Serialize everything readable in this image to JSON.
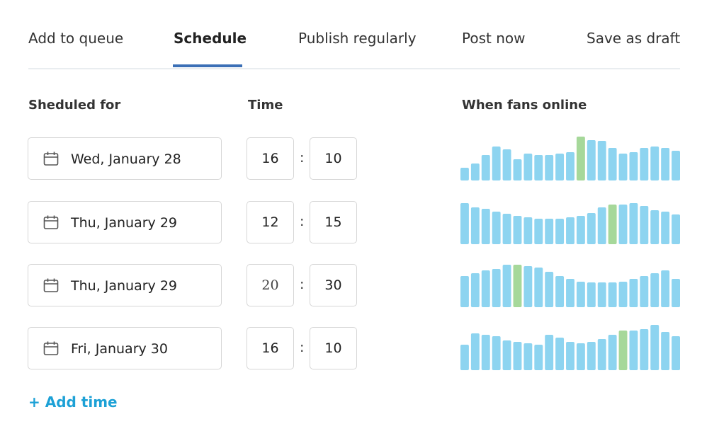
{
  "tabs": [
    {
      "label": "Add to queue",
      "active": false
    },
    {
      "label": "Schedule",
      "active": true
    },
    {
      "label": "Publish regularly",
      "active": false
    },
    {
      "label": "Post now",
      "active": false
    },
    {
      "label": "Save as draft",
      "active": false
    }
  ],
  "columns": {
    "scheduled_for": "Sheduled for",
    "time": "Time",
    "fans_online": "When fans online"
  },
  "colors": {
    "accent": "#3b6fb6",
    "bar": "#8dd4f0",
    "bar_highlight": "#a6d89a",
    "link": "#1da1d6"
  },
  "rows": [
    {
      "date": "Wed, January 28",
      "hour": "16",
      "minute": "10",
      "sep": ":"
    },
    {
      "date": "Thu, January 29",
      "hour": "12",
      "minute": "15",
      "sep": ":"
    },
    {
      "date": "Thu, January 29",
      "hour": "20",
      "minute": "30",
      "sep": ":"
    },
    {
      "date": "Fri, January 30",
      "hour": "16",
      "minute": "10",
      "sep": ":"
    }
  ],
  "chart_data": [
    {
      "type": "bar",
      "values": [
        18,
        24,
        36,
        48,
        44,
        30,
        38,
        36,
        36,
        38,
        40,
        62,
        57,
        56,
        46,
        38,
        40,
        46,
        48,
        46,
        42
      ],
      "highlight_index": 11
    },
    {
      "type": "bar",
      "values": [
        58,
        52,
        50,
        46,
        43,
        40,
        38,
        36,
        36,
        36,
        38,
        40,
        44,
        52,
        56,
        56,
        58,
        54,
        48,
        46,
        42
      ],
      "highlight_index": 14
    },
    {
      "type": "bar",
      "values": [
        44,
        48,
        52,
        54,
        60,
        60,
        58,
        56,
        50,
        44,
        40,
        36,
        35,
        35,
        35,
        36,
        40,
        44,
        48,
        52,
        40
      ],
      "highlight_index": 5
    },
    {
      "type": "bar",
      "values": [
        36,
        52,
        50,
        48,
        42,
        40,
        38,
        36,
        50,
        46,
        40,
        38,
        40,
        44,
        50,
        56,
        56,
        58,
        64,
        54,
        48
      ],
      "highlight_index": 15
    }
  ],
  "add_time_label": "+ Add time"
}
